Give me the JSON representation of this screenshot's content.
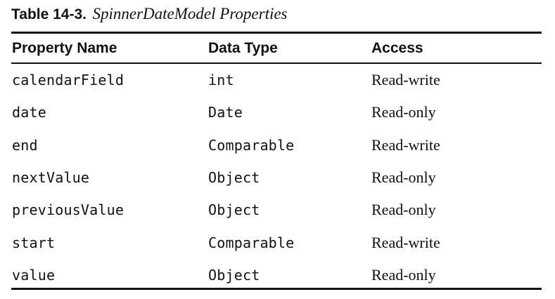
{
  "caption": {
    "label": "Table 14-3.",
    "title": "SpinnerDateModel Properties"
  },
  "table": {
    "headers": [
      "Property Name",
      "Data Type",
      "Access"
    ],
    "rows": [
      [
        "calendarField",
        "int",
        "Read-write"
      ],
      [
        "date",
        "Date",
        "Read-only"
      ],
      [
        "end",
        "Comparable",
        "Read-write"
      ],
      [
        "nextValue",
        "Object",
        "Read-only"
      ],
      [
        "previousValue",
        "Object",
        "Read-only"
      ],
      [
        "start",
        "Comparable",
        "Read-write"
      ],
      [
        "value",
        "Object",
        "Read-only"
      ]
    ]
  }
}
